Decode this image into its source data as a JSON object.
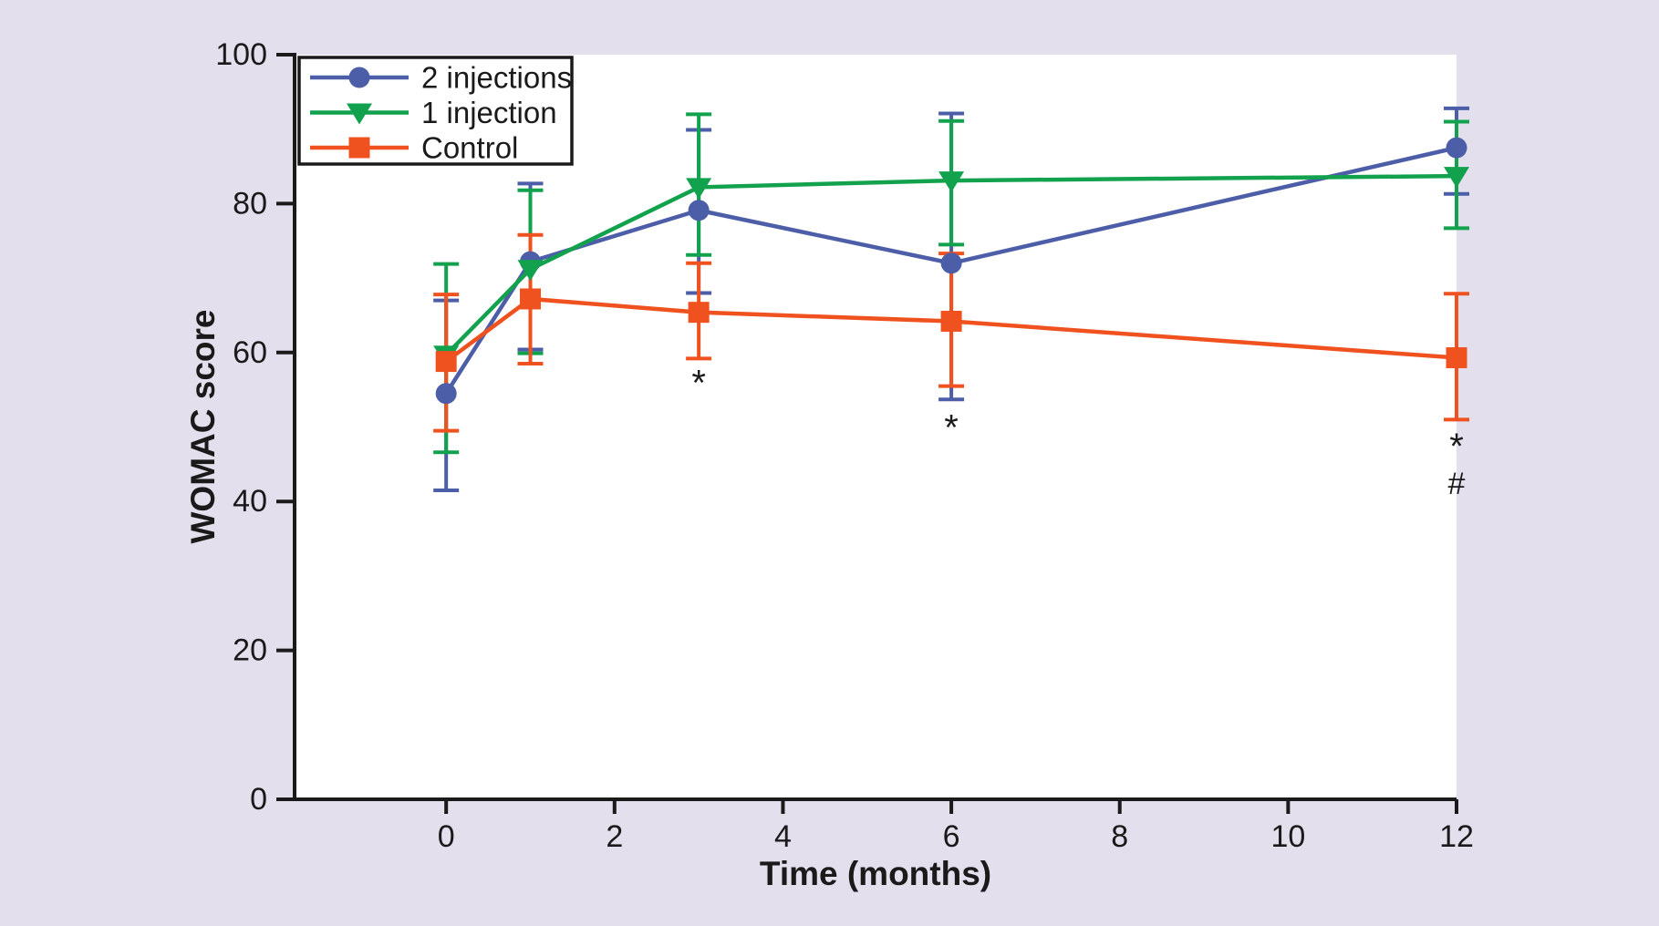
{
  "figure": {
    "background_color": "#e3dfed",
    "plot_background_color": "#ffffff",
    "axis_color": "#1a1a1a",
    "text_color": "#1a1a1a"
  },
  "chart_data": {
    "type": "line",
    "title": "",
    "xlabel": "Time (months)",
    "ylabel": "WOMAC score",
    "x": [
      0,
      1,
      3,
      6,
      12
    ],
    "xlim": [
      -1.8,
      12
    ],
    "ylim": [
      0,
      100
    ],
    "xticks": [
      0,
      2,
      4,
      6,
      8,
      10,
      12
    ],
    "yticks": [
      0,
      20,
      40,
      60,
      80,
      100
    ],
    "grid": false,
    "legend_position": "top-left",
    "error_bars": true,
    "series": [
      {
        "name": "2 injections",
        "color": "#4d5ea8",
        "marker": "circle",
        "values": [
          54.5,
          72.2,
          79.1,
          72.0,
          87.5
        ],
        "err_hi": [
          67.0,
          82.7,
          89.9,
          92.1,
          92.8
        ],
        "err_lo": [
          41.5,
          60.4,
          68.0,
          53.7,
          81.3
        ]
      },
      {
        "name": "1 injection",
        "color": "#12a24e",
        "marker": "triangle-down",
        "values": [
          59.7,
          71.2,
          82.2,
          83.1,
          83.7
        ],
        "err_hi": [
          71.9,
          81.8,
          92.0,
          91.1,
          91.0
        ],
        "err_lo": [
          46.6,
          59.9,
          73.1,
          74.5,
          76.7
        ]
      },
      {
        "name": "Control",
        "color": "#f0521f",
        "marker": "square",
        "values": [
          58.8,
          67.2,
          65.4,
          64.2,
          59.3
        ],
        "err_hi": [
          67.8,
          75.8,
          72.0,
          73.3,
          67.9
        ],
        "err_lo": [
          49.5,
          58.5,
          59.2,
          55.5,
          51.0
        ]
      }
    ],
    "annotations": [
      {
        "text": "*",
        "x": 3,
        "y": 56
      },
      {
        "text": "*",
        "x": 6,
        "y": 50
      },
      {
        "text": "*",
        "x": 12,
        "y": 47.5
      },
      {
        "text": "#",
        "x": 12,
        "y": 42.5
      }
    ]
  }
}
